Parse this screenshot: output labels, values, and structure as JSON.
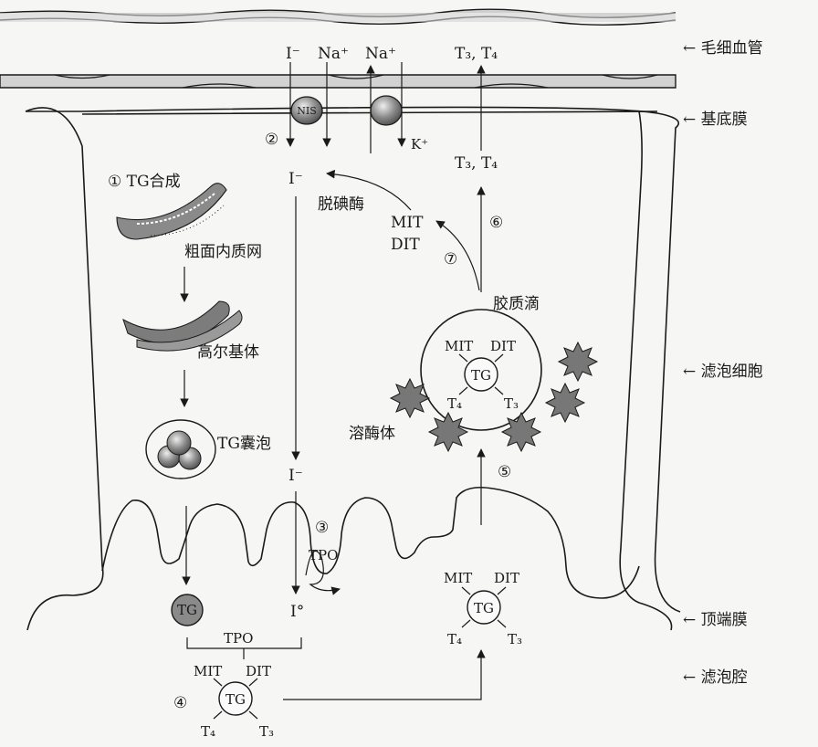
{
  "right_labels": {
    "capillary": "← 毛细血管",
    "basement": "← 基底膜",
    "follicle_cell": "← 滤泡细胞",
    "apical": "← 顶端膜",
    "lumen": "← 滤泡腔"
  },
  "top_ions": {
    "iodide": "I⁻",
    "sodium1": "Na⁺",
    "sodium2": "Na⁺",
    "t3t4": "T₃, T₄",
    "potassium": "K⁺",
    "nis": "NIS"
  },
  "steps": {
    "s1": "① TG合成",
    "s2": "②",
    "s3": "③",
    "s4": "④",
    "s5": "⑤",
    "s6": "⑥",
    "s7": "⑦"
  },
  "cell_labels": {
    "rer": "粗面内质网",
    "golgi": "高尔基体",
    "vesicle": "TG囊泡",
    "iodide_in": "I⁻",
    "deiodinase": "脱碘酶",
    "mit": "MIT",
    "dit": "DIT",
    "t3t4_cell": "T₃, T₄",
    "colloid_droplet": "胶质滴",
    "lysosome": "溶酶体",
    "iodide_low": "I⁻",
    "tpo1": "TPO",
    "iodine0": "I°",
    "tpo2": "TPO",
    "tg": "TG"
  },
  "tg_complex": {
    "mit": "MIT",
    "dit": "DIT",
    "tg": "TG",
    "t4": "T₄",
    "t3": "T₃"
  }
}
